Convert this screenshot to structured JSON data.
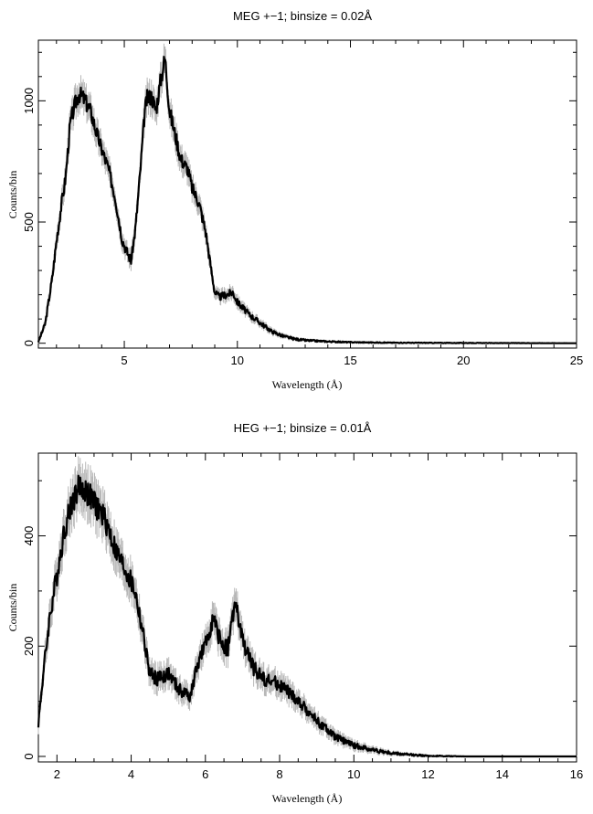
{
  "chart_data": [
    {
      "type": "line",
      "title": "MEG +−1; binsize = 0.02Å",
      "xlabel": "Wavelength (Å)",
      "ylabel": "Counts/bin",
      "xlim": [
        1.2,
        25
      ],
      "ylim": [
        -20,
        1250
      ],
      "xticks": [
        5,
        10,
        15,
        20,
        25
      ],
      "yticks": [
        0,
        500,
        1000
      ],
      "error_bars": true,
      "grid": false,
      "series": [
        {
          "x": [
            1.2,
            1.5,
            1.8,
            2.0,
            2.2,
            2.4,
            2.6,
            2.8,
            3.0,
            3.2,
            3.5,
            3.8,
            4.0,
            4.3,
            4.6,
            4.9,
            5.1,
            5.3,
            5.5,
            5.7,
            5.9,
            6.0,
            6.2,
            6.4,
            6.6,
            6.8,
            7.0,
            7.2,
            7.5,
            7.8,
            8.0,
            8.3,
            8.6,
            8.8,
            9.0,
            9.2,
            9.5,
            9.8,
            10.0,
            10.5,
            11.0,
            11.5,
            12.0,
            12.5,
            13.0,
            14.0,
            15.0,
            17.0,
            20.0,
            25.0
          ],
          "y": [
            5,
            80,
            260,
            420,
            560,
            680,
            900,
            980,
            1030,
            1010,
            960,
            860,
            800,
            720,
            600,
            430,
            380,
            340,
            480,
            700,
            950,
            1010,
            1020,
            960,
            1080,
            1180,
            960,
            880,
            760,
            720,
            640,
            580,
            460,
            330,
            210,
            190,
            200,
            210,
            170,
            120,
            85,
            50,
            30,
            18,
            12,
            7,
            4,
            2,
            1,
            0
          ]
        }
      ]
    },
    {
      "type": "line",
      "title": "HEG +−1; binsize = 0.01Å",
      "xlabel": "Wavelength (Å)",
      "ylabel": "Counts/bin",
      "xlim": [
        1.5,
        16
      ],
      "ylim": [
        -10,
        550
      ],
      "xticks": [
        2,
        4,
        6,
        8,
        10,
        12,
        14,
        16
      ],
      "yticks": [
        0,
        200,
        400
      ],
      "error_bars": true,
      "grid": false,
      "series": [
        {
          "x": [
            1.5,
            1.6,
            1.8,
            2.0,
            2.2,
            2.4,
            2.6,
            2.8,
            3.0,
            3.3,
            3.6,
            3.9,
            4.1,
            4.3,
            4.5,
            4.7,
            5.0,
            5.3,
            5.6,
            5.8,
            6.0,
            6.2,
            6.4,
            6.6,
            6.8,
            7.0,
            7.3,
            7.6,
            8.0,
            8.5,
            9.0,
            9.5,
            10.0,
            10.5,
            11.0,
            11.5,
            12.0,
            13.0,
            14.0,
            16.0
          ],
          "y": [
            60,
            130,
            250,
            330,
            410,
            460,
            490,
            480,
            460,
            430,
            370,
            330,
            300,
            230,
            150,
            140,
            150,
            120,
            110,
            170,
            200,
            250,
            210,
            195,
            280,
            210,
            160,
            140,
            130,
            100,
            65,
            35,
            20,
            12,
            6,
            3,
            1,
            0,
            0,
            0
          ]
        }
      ]
    }
  ]
}
